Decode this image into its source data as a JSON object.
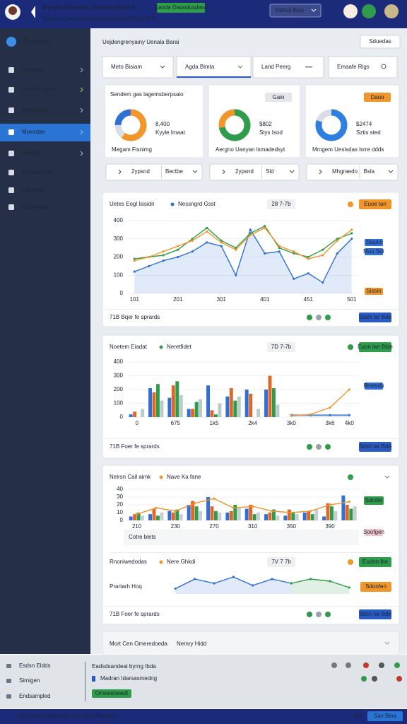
{
  "header": {
    "title": "Simulai Ekonomi, Unelaian Bisro 5",
    "subtitle": "Sudgen Cemgeniha dwisnekoller!1071Q 5TO",
    "badge": "Kaoda Dauodusdasa",
    "select": "Ebbuk Biso"
  },
  "sidebar": {
    "brand": "Sorojasian",
    "items": [
      "Smdubir",
      "Kuta Fonpsha",
      "Endegotia",
      "Muesdae",
      "Sorojian",
      "Eadsanlaatie",
      "Eajodisla",
      "Eaupedas"
    ],
    "active": 3
  },
  "main": {
    "title": "Uejdengrenyainy Uenala Barai",
    "button": "Sduedas",
    "filters": [
      "Meto Bisiam",
      "Agda Bimta",
      "Land Peerg",
      "Emaafe Rigs"
    ]
  },
  "cards": [
    {
      "title": "Sendem gas lagemsberpsaio",
      "value": "8,400",
      "sub": "Kyyle Imaat",
      "caption": "Megam Fisnimg",
      "segments": [
        {
          "value": 60,
          "color": "#f0962a"
        },
        {
          "value": 15,
          "color": "#d8dde6"
        },
        {
          "value": 25,
          "color": "#2f6fd6"
        }
      ],
      "controls": [
        "2ypsnd",
        "Bectbe"
      ]
    },
    {
      "badge": "Gaio",
      "badge_color": "#e4e6ea",
      "value": "$802",
      "sub": "Stys Isod",
      "caption": "Aergno Uanyan lsmadedsyt",
      "segments": [
        {
          "value": 72,
          "color": "#2e9c4a"
        },
        {
          "value": 28,
          "color": "#f0962a"
        }
      ],
      "controls": [
        "2ypsnd",
        "Sld"
      ]
    },
    {
      "badge": "Dauo",
      "badge_color": "#f0962a",
      "value": "$2474",
      "sub": "Sztis sted",
      "caption": "Mmgem Uesisdas lsrre ddds",
      "segments": [
        {
          "value": 80,
          "color": "#2f7fe0"
        },
        {
          "value": 20,
          "color": "#d8dde6"
        }
      ],
      "controls": [
        "Mhgraedo",
        "Bsla"
      ]
    }
  ],
  "panels": [
    {
      "title": "Uetes Eogl lsisidn",
      "legend": "Nessngrd Gsst",
      "legend_color": "#2f6fd6",
      "date": "28 7-7b",
      "button": "Euoe lan",
      "tags": [
        {
          "text": "Sispin",
          "color": "#2f6fd6"
        },
        {
          "text": "Muu Sut",
          "color": "#2f6fd6"
        },
        {
          "text": "Sissin",
          "color": "#f0962a"
        }
      ],
      "footer": "71B Bqer fe sprards",
      "action": "Sdeh lar Bde",
      "chart": {
        "type": "line",
        "ylim": [
          0,
          400
        ],
        "yticks": [
          0,
          100,
          200,
          300,
          400
        ],
        "categories": [
          "101",
          null,
          null,
          "201",
          null,
          null,
          "301",
          null,
          null,
          "401",
          null,
          null,
          "451",
          null,
          null,
          "501"
        ],
        "series": [
          {
            "kind": "area",
            "color": "#2f6fd6",
            "values": [
              120,
              150,
              180,
              200,
              230,
              280,
              260,
              100,
              350,
              220,
              230,
              80,
              110,
              60,
              220,
              300
            ]
          },
          {
            "kind": "line",
            "color": "#2e9c4a",
            "values": [
              190,
              200,
              210,
              240,
              300,
              360,
              290,
              250,
              330,
              370,
              250,
              220,
              200,
              240,
              300,
              330
            ]
          },
          {
            "kind": "line",
            "color": "#f0962a",
            "values": [
              180,
              200,
              230,
              260,
              290,
              340,
              280,
              240,
              320,
              360,
              260,
              230,
              190,
              210,
              290,
              350
            ]
          }
        ]
      }
    },
    {
      "title": "Noetem Eiadat",
      "legend": "Neretfidet",
      "legend_color": "#2e9c4a",
      "date": "7D 7-7b",
      "button": "Euon lan Blde",
      "tags": [
        {
          "text": "Blnesdu",
          "color": "#2f6fd6"
        }
      ],
      "footer": "71B Foer fe sprards",
      "action": "Sdsh lar Bde",
      "chart": {
        "type": "bar",
        "ylim": [
          0,
          400
        ],
        "yticks": [
          0,
          100,
          200,
          300,
          400
        ],
        "categories": [
          "0",
          null,
          "675",
          null,
          "1k5",
          null,
          "2k4",
          null,
          "3k0",
          null,
          "3k6",
          "4k0"
        ],
        "series": [
          {
            "kind": "bar",
            "color": "#2f6fd6",
            "values": [
              20,
              210,
              140,
              60,
              230,
              150,
              200,
              200,
              null,
              null,
              null,
              null
            ]
          },
          {
            "kind": "bar",
            "color": "#e0672a",
            "values": [
              40,
              180,
              230,
              60,
              50,
              210,
              170,
              300,
              null,
              null,
              null,
              null
            ]
          },
          {
            "kind": "bar",
            "color": "#2e9c4a",
            "values": [
              null,
              240,
              260,
              110,
              20,
              120,
              null,
              210,
              null,
              null,
              null,
              null
            ]
          },
          {
            "kind": "bar",
            "color": "#b9ccc8",
            "values": [
              60,
              120,
              160,
              130,
              100,
              150,
              60,
              90,
              null,
              null,
              null,
              null
            ]
          },
          {
            "kind": "area",
            "color": "#2f6fd6",
            "values": [
              null,
              null,
              null,
              null,
              null,
              null,
              null,
              null,
              15,
              15,
              15,
              15
            ]
          },
          {
            "kind": "line",
            "color": "#f0962a",
            "values": [
              null,
              null,
              null,
              null,
              null,
              null,
              null,
              null,
              10,
              20,
              70,
              200
            ]
          }
        ]
      }
    },
    {
      "title": "Nelrsn Cail aimk",
      "legend": "Nave Ka fane",
      "legend_color": "#f0962a",
      "button": "Sdotlie",
      "tags": [
        {
          "text": "Soofgen",
          "color": "#f2c6cc"
        }
      ],
      "note": "Cotre blets",
      "sub_title": "Rnoniwedodas",
      "sub_legend": "Nere Ghkdi",
      "sub_date": "7V 7 7b",
      "sub_label": "Prartarh Hoq",
      "sub_button": "Eudon lbe",
      "sub_tag": "Sdoofen",
      "footer": "71B Foer fe sprards",
      "action": "Sdsh lar Bde",
      "chart": {
        "type": "bar",
        "ylim": [
          0,
          40
        ],
        "yticks": [
          0,
          10,
          20,
          30,
          40
        ],
        "categories": [
          "210",
          null,
          "230",
          null,
          "270",
          null,
          "310",
          null,
          "350",
          null,
          "390",
          null
        ],
        "series": [
          {
            "kind": "bar",
            "color": "#2f6fd6",
            "values": [
              5,
              8,
              12,
              20,
              30,
              10,
              15,
              8,
              6,
              10,
              5,
              32
            ]
          },
          {
            "kind": "bar",
            "color": "#e0672a",
            "values": [
              8,
              15,
              10,
              25,
              18,
              12,
              20,
              10,
              14,
              12,
              22,
              20
            ]
          },
          {
            "kind": "bar",
            "color": "#2e9c4a",
            "values": [
              10,
              6,
              14,
              18,
              12,
              20,
              8,
              14,
              10,
              8,
              18,
              15
            ]
          },
          {
            "kind": "bar",
            "color": "#c6d0d4",
            "values": [
              6,
              10,
              8,
              12,
              10,
              16,
              10,
              6,
              8,
              14,
              12,
              18
            ]
          },
          {
            "kind": "line",
            "color": "#f0962a",
            "values": [
              8,
              16,
              12,
              22,
              28,
              16,
              18,
              12,
              10,
              12,
              20,
              24
            ]
          }
        ]
      },
      "chart2": {
        "type": "area",
        "ylim": [
          0,
          20
        ],
        "series": [
          {
            "kind": "area",
            "color": "#2f6fd6",
            "values": [
              null,
              null,
              5,
              14,
              10,
              16,
              8,
              14,
              10,
              null,
              null,
              null
            ]
          },
          {
            "kind": "area",
            "color": "#2e9c4a",
            "values": [
              null,
              null,
              null,
              null,
              null,
              null,
              null,
              null,
              10,
              14,
              12,
              6
            ]
          }
        ]
      }
    }
  ],
  "collapsed": {
    "title": "Mort Cen Omeredoeda",
    "legend": "Nemry Hidd"
  },
  "dock": {
    "items": [
      "Esdsn Eldds",
      "Sirnigen",
      "Endsampled"
    ],
    "lines": [
      "Eadsdsandeai byrng Ibda",
      "Madran Idarsasmedng"
    ],
    "button": "Omeeeneedt"
  },
  "footer": {
    "text": "OCGshhal Obrpsthe Uiaq Mos Rsugen",
    "link": "Ibd",
    "button": "Sav Bina"
  }
}
